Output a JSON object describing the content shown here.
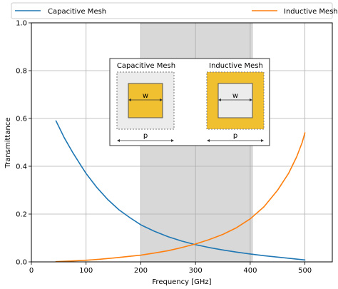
{
  "chart_data": {
    "type": "line",
    "xlabel": "Frequency [GHz]",
    "ylabel": "Transmittance",
    "xlim": [
      0,
      550
    ],
    "ylim": [
      0,
      1.0
    ],
    "xticks": [
      0,
      100,
      200,
      300,
      400,
      500
    ],
    "yticks": [
      0.0,
      0.2,
      0.4,
      0.6,
      0.8,
      1.0
    ],
    "xtick_labels": [
      "0",
      "100",
      "200",
      "300",
      "400",
      "500"
    ],
    "ytick_labels": [
      "0.0",
      "0.2",
      "0.4",
      "0.6",
      "0.8",
      "1.0"
    ],
    "grid": true,
    "legend": "top, outside",
    "shaded_band": [
      200,
      405
    ],
    "series": [
      {
        "name": "Capacitive Mesh",
        "color": "#1f77b4",
        "x": [
          45,
          60,
          75,
          90,
          100,
          120,
          140,
          160,
          180,
          200,
          225,
          250,
          275,
          300,
          325,
          350,
          375,
          400,
          425,
          450,
          475,
          500
        ],
        "y": [
          0.59,
          0.52,
          0.46,
          0.405,
          0.37,
          0.31,
          0.26,
          0.218,
          0.185,
          0.155,
          0.128,
          0.105,
          0.087,
          0.072,
          0.06,
          0.05,
          0.041,
          0.033,
          0.026,
          0.02,
          0.014,
          0.008
        ]
      },
      {
        "name": "Inductive Mesh",
        "color": "#ff7f0e",
        "x": [
          45,
          75,
          100,
          125,
          150,
          175,
          200,
          225,
          250,
          275,
          300,
          325,
          350,
          375,
          400,
          425,
          450,
          470,
          485,
          495,
          500
        ],
        "y": [
          0.001,
          0.004,
          0.007,
          0.011,
          0.016,
          0.022,
          0.028,
          0.037,
          0.047,
          0.06,
          0.075,
          0.093,
          0.115,
          0.143,
          0.18,
          0.23,
          0.3,
          0.37,
          0.44,
          0.5,
          0.54
        ]
      }
    ]
  },
  "inset": {
    "capacitive": {
      "title": "Capacitive Mesh",
      "w_label": "w",
      "p_label": "p"
    },
    "inductive": {
      "title": "Inductive Mesh",
      "w_label": "w",
      "p_label": "p"
    },
    "colors": {
      "gold": "#f0c030",
      "light_gray": "#ececec"
    }
  }
}
